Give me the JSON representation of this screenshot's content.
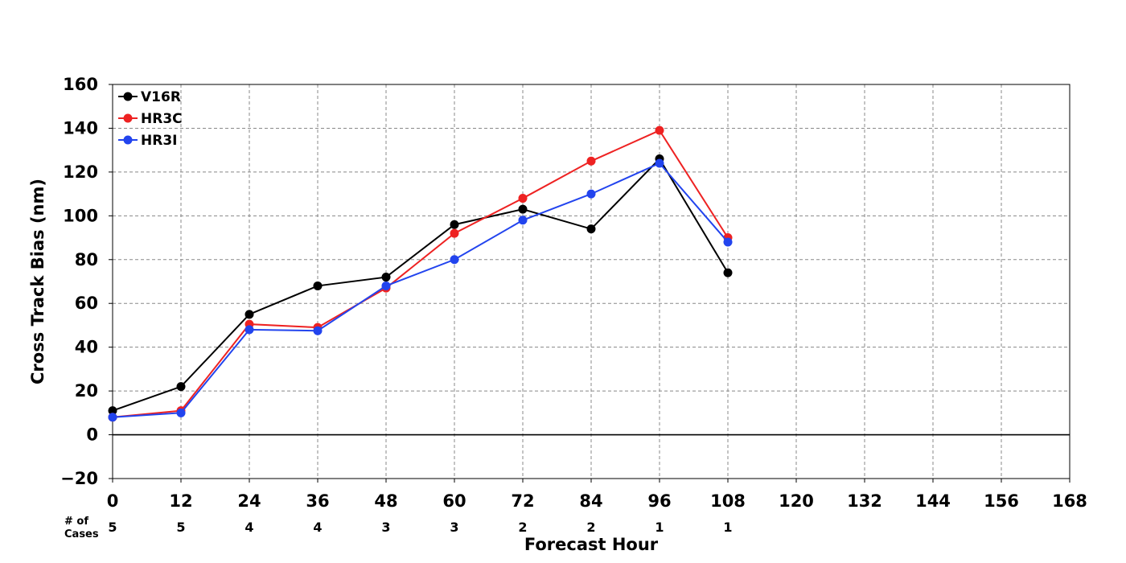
{
  "chart_data": {
    "type": "line",
    "xlabel": "Forecast Hour",
    "ylabel": "Cross Track Bias (nm)",
    "xlim": [
      0,
      168
    ],
    "ylim": [
      -20,
      160
    ],
    "x_ticks": [
      0,
      12,
      24,
      36,
      48,
      60,
      72,
      84,
      96,
      108,
      120,
      132,
      144,
      156,
      168
    ],
    "y_ticks": [
      -20,
      0,
      20,
      40,
      60,
      80,
      100,
      120,
      140,
      160
    ],
    "y_tick_labels": [
      "−20",
      "0",
      "20",
      "40",
      "60",
      "80",
      "100",
      "120",
      "140",
      "160"
    ],
    "grid": true,
    "legend_position": "top-left",
    "series": [
      {
        "name": "V16R",
        "color": "#000000",
        "x": [
          0,
          12,
          24,
          36,
          48,
          60,
          72,
          84,
          96,
          108
        ],
        "values": [
          11,
          22,
          55,
          68,
          72,
          96,
          103,
          94,
          126,
          74
        ]
      },
      {
        "name": "HR3C",
        "color": "#ee2222",
        "x": [
          0,
          12,
          24,
          36,
          48,
          60,
          72,
          84,
          96,
          108
        ],
        "values": [
          8,
          11,
          50.5,
          49,
          67,
          92,
          108,
          125,
          139,
          90
        ]
      },
      {
        "name": "HR3I",
        "color": "#2244ee",
        "x": [
          0,
          12,
          24,
          36,
          48,
          60,
          72,
          84,
          96,
          108
        ],
        "values": [
          8,
          10,
          48,
          47.5,
          68,
          80,
          98,
          110,
          124,
          88
        ]
      }
    ],
    "cases": {
      "label_line1": "# of",
      "label_line2": "Cases",
      "x": [
        0,
        12,
        24,
        36,
        48,
        60,
        72,
        84,
        96,
        108
      ],
      "values": [
        "5",
        "5",
        "4",
        "4",
        "3",
        "3",
        "2",
        "2",
        "1",
        "1"
      ]
    }
  }
}
